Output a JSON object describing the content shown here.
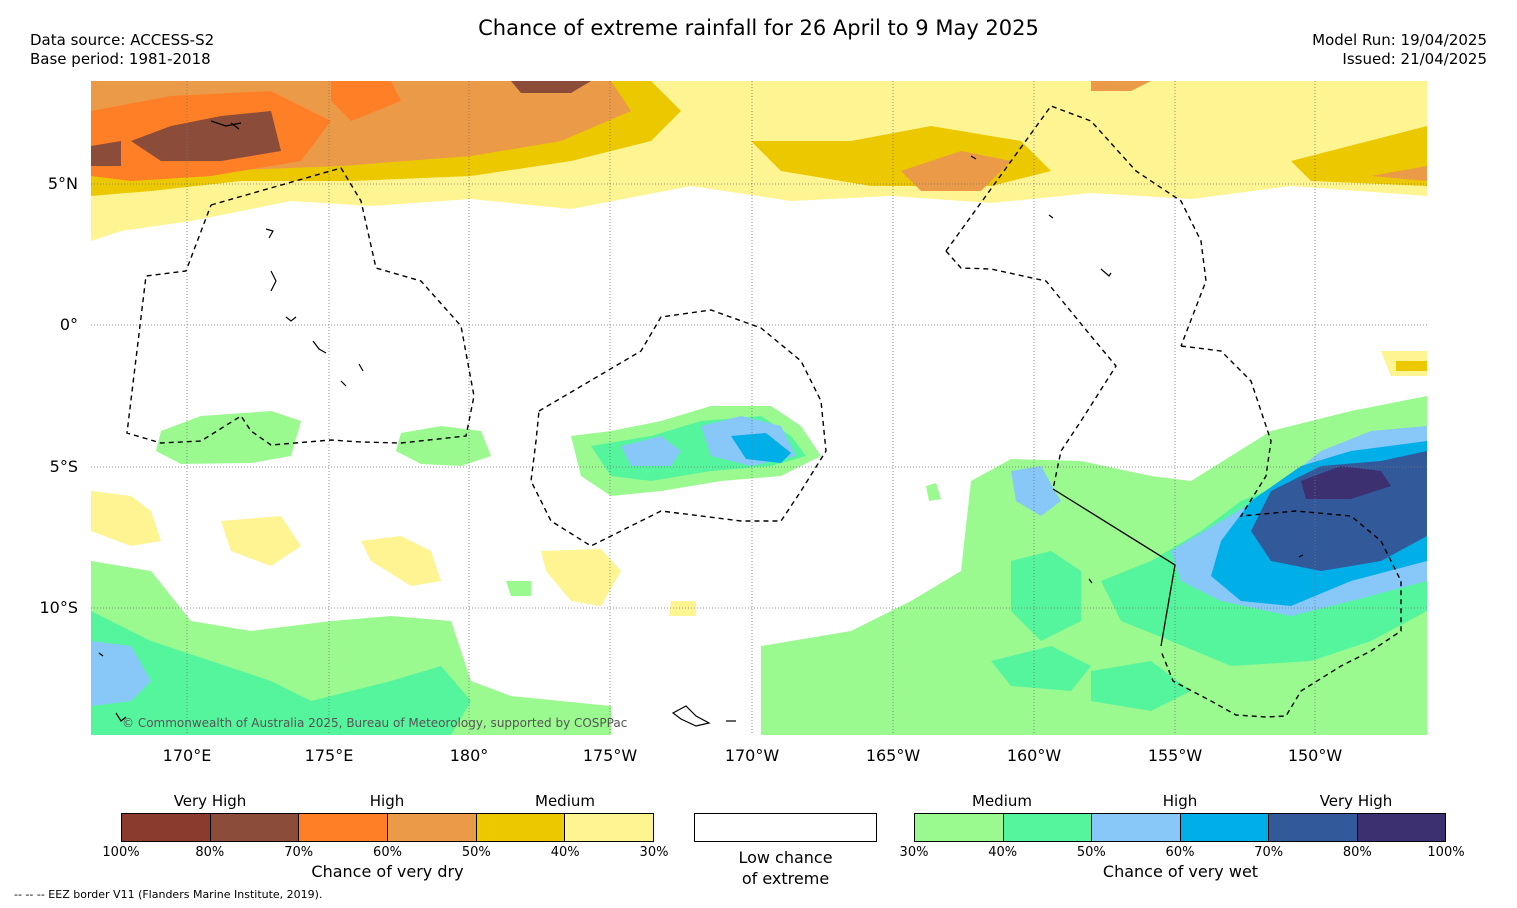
{
  "title": "Chance of extreme rainfall for 26 April to 9 May 2025",
  "data_source": "Data source: ACCESS-S2",
  "base_period": "Base period: 1981-2018",
  "model_run": "Model Run: 19/04/2025",
  "issued": "Issued: 21/04/2025",
  "lat_labels": [
    "5°N",
    "0°",
    "5°S",
    "10°S"
  ],
  "lon_labels": [
    "170°E",
    "175°E",
    "180°",
    "175°W",
    "170°W",
    "165°W",
    "160°W",
    "155°W",
    "150°W"
  ],
  "copyright": "© Commonwealth of Australia 2025, Bureau of Meteorology, supported by COSPPac",
  "footnote": "-- -- -- EEZ border V11 (Flanders Marine Institute, 2019).",
  "legend_dry": {
    "categories": [
      "Very High",
      "High",
      "Medium"
    ],
    "colors": [
      "#8b3a2e",
      "#8b4c3a",
      "#ff7f27",
      "#eb9a48",
      "#ebc800",
      "#fef491"
    ],
    "ticks": [
      "100%",
      "80%",
      "70%",
      "60%",
      "50%",
      "40%",
      "30%"
    ],
    "caption": "Chance of very dry"
  },
  "legend_low": {
    "caption_line1": "Low chance",
    "caption_line2": "of extreme"
  },
  "legend_wet": {
    "categories": [
      "Medium",
      "High",
      "Very High"
    ],
    "colors": [
      "#9bfa8f",
      "#55f59d",
      "#87c8f8",
      "#00aee8",
      "#325a9b",
      "#3c3070"
    ],
    "ticks": [
      "30%",
      "40%",
      "50%",
      "60%",
      "70%",
      "80%",
      "100%"
    ],
    "caption": "Chance of very wet"
  }
}
